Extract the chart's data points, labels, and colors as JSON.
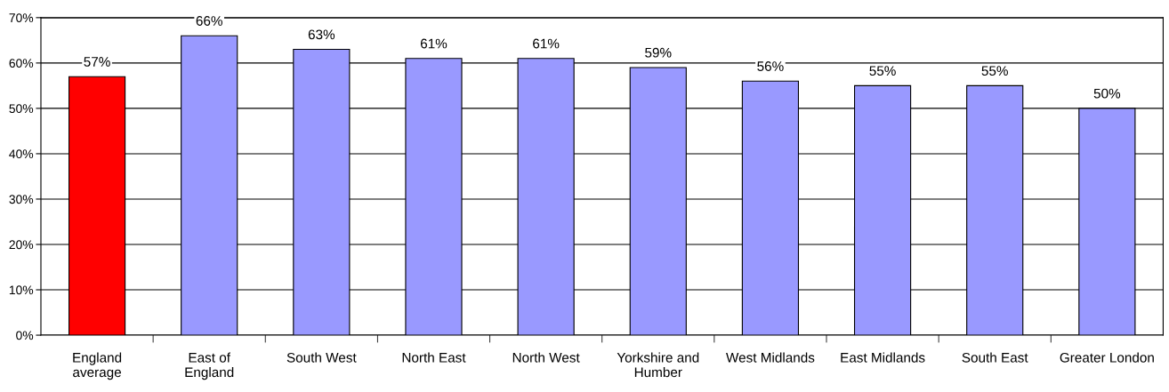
{
  "chart_data": {
    "type": "bar",
    "categories": [
      "England average",
      "East of England",
      "South West",
      "North East",
      "North West",
      "Yorkshire and Humber",
      "West Midlands",
      "East Midlands",
      "South East",
      "Greater London"
    ],
    "values": [
      57,
      66,
      63,
      61,
      61,
      59,
      56,
      55,
      55,
      50
    ],
    "colors": [
      "#ff0000",
      "#9999ff",
      "#9999ff",
      "#9999ff",
      "#9999ff",
      "#9999ff",
      "#9999ff",
      "#9999ff",
      "#9999ff",
      "#9999ff"
    ],
    "value_labels": [
      "57%",
      "66%",
      "63%",
      "61%",
      "61%",
      "59%",
      "56%",
      "55%",
      "55%",
      "50%"
    ],
    "ylim": [
      0,
      70
    ],
    "yticks": [
      {
        "value": 0,
        "label": "0%"
      },
      {
        "value": 10,
        "label": "10%"
      },
      {
        "value": 20,
        "label": "20%"
      },
      {
        "value": 30,
        "label": "30%"
      },
      {
        "value": 40,
        "label": "40%"
      },
      {
        "value": 50,
        "label": "50%"
      },
      {
        "value": 60,
        "label": "60%"
      },
      {
        "value": 70,
        "label": "70%"
      }
    ],
    "grid": "y"
  }
}
